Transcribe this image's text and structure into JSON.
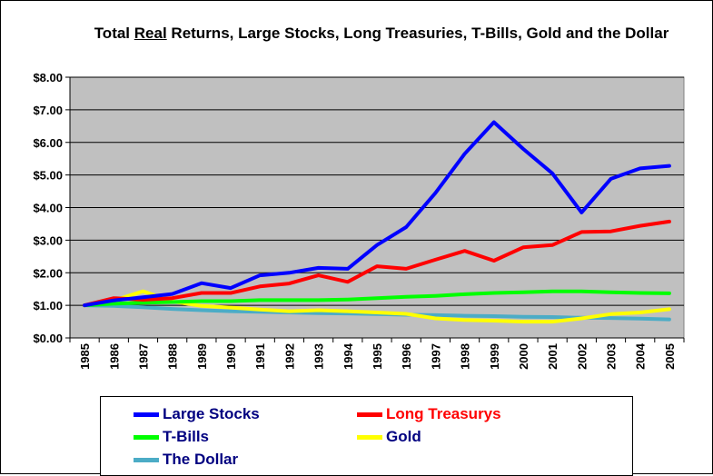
{
  "chart_data": {
    "type": "line",
    "title_parts": [
      "Total ",
      "Real",
      " Returns, Large Stocks, Long Treasuries, T-Bills, Gold and the Dollar"
    ],
    "title": "Total Real Returns, Large Stocks, Long Treasuries, T-Bills, Gold and the Dollar",
    "xlabel": "",
    "ylabel": "",
    "x": [
      "1985",
      "1986",
      "1987",
      "1988",
      "1989",
      "1990",
      "1991",
      "1992",
      "1993",
      "1994",
      "1995",
      "1996",
      "1997",
      "1998",
      "1999",
      "2000",
      "2001",
      "2002",
      "2003",
      "2004",
      "2005"
    ],
    "ylim": [
      0,
      8
    ],
    "yticks": [
      "$0.00",
      "$1.00",
      "$2.00",
      "$3.00",
      "$4.00",
      "$5.00",
      "$6.00",
      "$7.00",
      "$8.00"
    ],
    "grid": true,
    "plot_background": "#c0c0c0",
    "legend_position": "bottom",
    "series": [
      {
        "name": "Large Stocks",
        "color": "#0000ff",
        "values": [
          1.0,
          1.15,
          1.25,
          1.35,
          1.68,
          1.53,
          1.92,
          2.0,
          2.15,
          2.12,
          2.85,
          3.4,
          4.45,
          5.65,
          6.62,
          5.8,
          5.05,
          3.85,
          4.88,
          5.2,
          5.28
        ]
      },
      {
        "name": "Long Treasurys",
        "color": "#ff0000",
        "values": [
          1.0,
          1.22,
          1.17,
          1.22,
          1.38,
          1.38,
          1.58,
          1.67,
          1.92,
          1.72,
          2.2,
          2.12,
          2.4,
          2.67,
          2.37,
          2.78,
          2.85,
          3.25,
          3.27,
          3.44,
          3.57
        ]
      },
      {
        "name": "T-Bills",
        "color": "#00ff00",
        "values": [
          1.0,
          1.05,
          1.08,
          1.1,
          1.13,
          1.13,
          1.16,
          1.16,
          1.16,
          1.18,
          1.22,
          1.26,
          1.29,
          1.34,
          1.38,
          1.4,
          1.43,
          1.43,
          1.4,
          1.38,
          1.37
        ]
      },
      {
        "name": "Gold",
        "color": "#ffff00",
        "values": [
          1.0,
          1.15,
          1.43,
          1.12,
          0.98,
          0.93,
          0.87,
          0.82,
          0.85,
          0.82,
          0.78,
          0.74,
          0.6,
          0.55,
          0.53,
          0.5,
          0.5,
          0.6,
          0.73,
          0.78,
          0.88
        ]
      },
      {
        "name": "The Dollar",
        "color": "#4bacc6",
        "values": [
          1.0,
          0.98,
          0.94,
          0.89,
          0.85,
          0.82,
          0.8,
          0.78,
          0.76,
          0.75,
          0.73,
          0.71,
          0.7,
          0.68,
          0.67,
          0.65,
          0.64,
          0.62,
          0.61,
          0.59,
          0.57
        ]
      }
    ]
  }
}
